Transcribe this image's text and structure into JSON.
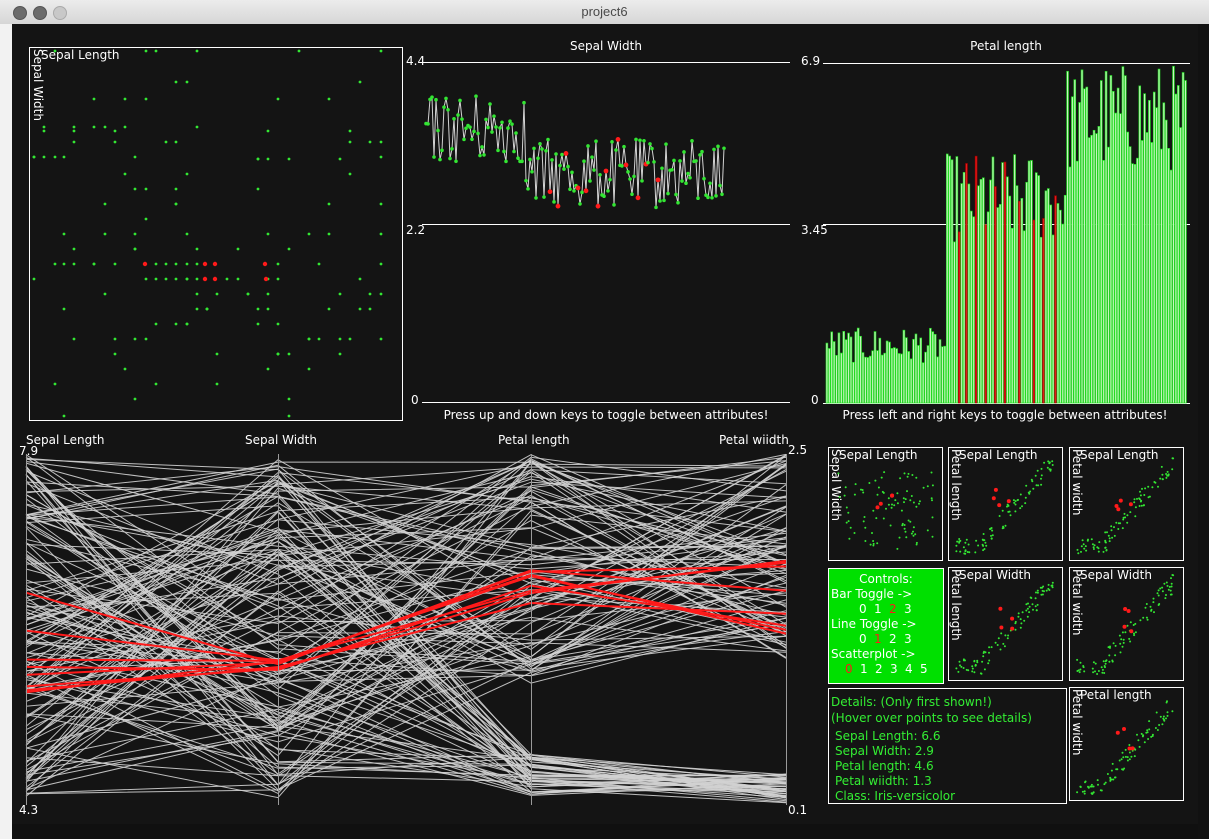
{
  "window": {
    "title": "project6"
  },
  "scatter": {
    "x_label": "Sepal Length",
    "y_label": "Sepal Width"
  },
  "line_chart": {
    "title": "Sepal Width",
    "y_max_label": "4.4",
    "y_mid_label": "2.2",
    "y_min_label": "0",
    "hint": "Press up and down keys to toggle between attributes!"
  },
  "bar_chart": {
    "title": "Petal length",
    "y_max_label": "6.9",
    "y_mid_label": "3.45",
    "y_min_label": "0",
    "hint": "Press left and right keys to toggle between attributes!"
  },
  "parallel": {
    "axes": [
      "Sepal Length",
      "Sepal Width",
      "Petal length",
      "Petal wiidth"
    ],
    "left_max": "7.9",
    "left_min": "4.3",
    "right_max": "2.5",
    "right_min": "0.1"
  },
  "matrix": {
    "cells": [
      {
        "x_label": "Sepal Length",
        "y_label": "Sepal Width"
      },
      {
        "x_label": "Sepal Length",
        "y_label": "Petal length"
      },
      {
        "x_label": "Sepal Length",
        "y_label": "Petal width"
      },
      {
        "x_label": "Sepal Width",
        "y_label": "Petal length"
      },
      {
        "x_label": "Sepal Width",
        "y_label": "Petal width"
      },
      {
        "x_label": "Petal length",
        "y_label": "Petal width"
      }
    ]
  },
  "controls": {
    "title": "Controls:",
    "bar_toggle": "Bar Toggle ->",
    "bar_options": [
      "0",
      "1",
      "2",
      "3"
    ],
    "bar_selected": 2,
    "line_toggle": "Line Toggle ->",
    "line_options": [
      "0",
      "1",
      "2",
      "3"
    ],
    "line_selected": 1,
    "scatter_toggle": "Scatterplot ->",
    "scatter_options": [
      "0",
      "1",
      "2",
      "3",
      "4",
      "5"
    ],
    "scatter_selected": 0
  },
  "details": {
    "header": "Details:  (Only first shown!)",
    "hint": "(Hover over points to see details)",
    "lines": [
      "Sepal Length: 6.6",
      "Sepal Width: 2.9",
      "Petal length: 4.6",
      "Petal wiidth: 1.3",
      "Class: Iris-versicolor"
    ]
  },
  "colors": {
    "background": "#141414",
    "point": "#33e633",
    "highlight": "#ff1a1a",
    "line": "#d2d2d2",
    "bar_fill": "#c8f5c0",
    "bar_stroke": "#22dd22",
    "controls_bg": "#00e000"
  }
}
